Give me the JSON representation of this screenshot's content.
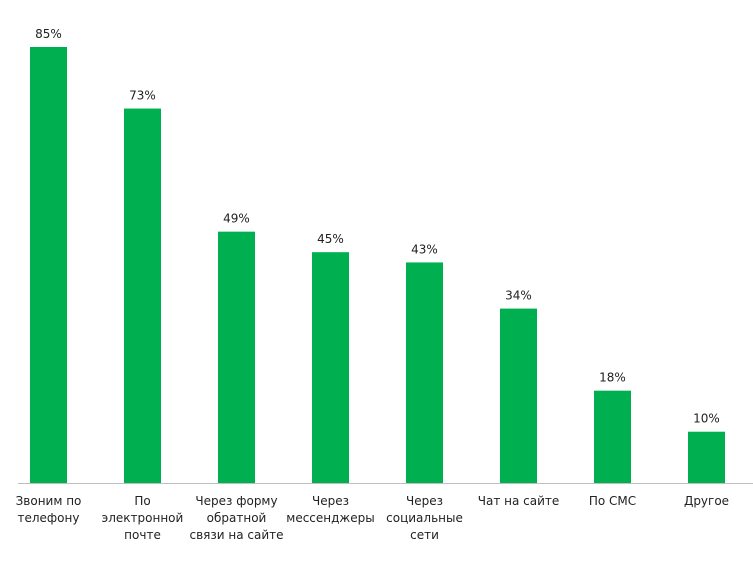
{
  "chart_data": {
    "type": "bar",
    "categories": [
      "Звоним по телефону",
      "По электронной почте",
      "Через форму обратной связи на сайте",
      "Через мессенджеры",
      "Через социальные сети",
      "Чат на сайте",
      "По СМС",
      "Другое"
    ],
    "values": [
      85,
      73,
      49,
      45,
      43,
      34,
      18,
      10
    ],
    "value_labels": [
      "85%",
      "73%",
      "49%",
      "45%",
      "43%",
      "34%",
      "18%",
      "10%"
    ],
    "color": "#00b050",
    "ylim": [
      0,
      90
    ],
    "grid": false
  }
}
